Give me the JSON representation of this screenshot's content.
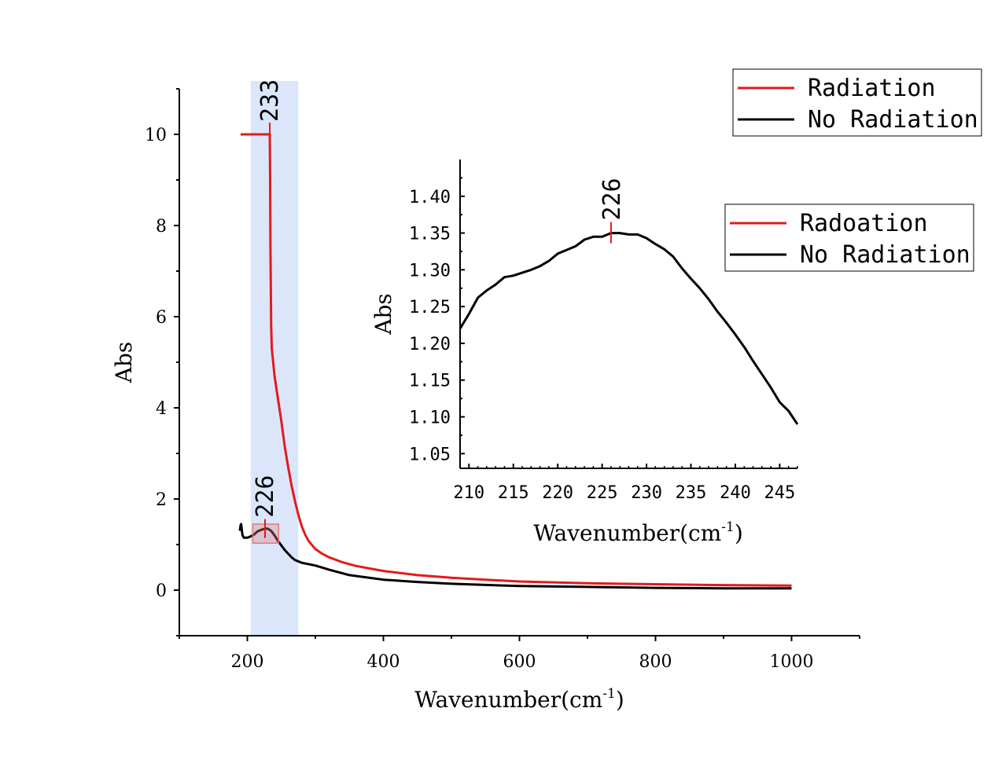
{
  "chart_data": [
    {
      "id": "main",
      "type": "line",
      "xlabel": "Wavenumber(cm",
      "xlabel_sup": "-1",
      "xlabel_close": ")",
      "ylabel": "Abs",
      "xlim": [
        100,
        1100
      ],
      "ylim": [
        -1,
        11
      ],
      "xticks": [
        200,
        400,
        600,
        800,
        1000
      ],
      "yticks": [
        0,
        2,
        4,
        6,
        8,
        10
      ],
      "highlight_band": {
        "x": [
          205,
          275
        ],
        "color": "#dce6fb"
      },
      "zoom_box": {
        "x": [
          208,
          246
        ],
        "y": [
          1.03,
          1.45
        ],
        "color": "#e07a7a"
      },
      "series": [
        {
          "name": "Radiation",
          "color": "#e31a1c",
          "points": [
            [
              190,
              10
            ],
            [
              232.5,
              10
            ],
            [
              233,
              10
            ],
            [
              233.5,
              9
            ],
            [
              234,
              7.5
            ],
            [
              235,
              5.8
            ],
            [
              236,
              5.3
            ],
            [
              240,
              4.7
            ],
            [
              245,
              4.2
            ],
            [
              250,
              3.7
            ],
            [
              255,
              3.15
            ],
            [
              260,
              2.7
            ],
            [
              265,
              2.3
            ],
            [
              270,
              1.95
            ],
            [
              275,
              1.65
            ],
            [
              280,
              1.4
            ],
            [
              285,
              1.22
            ],
            [
              290,
              1.08
            ],
            [
              300,
              0.9
            ],
            [
              310,
              0.8
            ],
            [
              320,
              0.72
            ],
            [
              340,
              0.61
            ],
            [
              360,
              0.53
            ],
            [
              400,
              0.42
            ],
            [
              450,
              0.33
            ],
            [
              500,
              0.27
            ],
            [
              550,
              0.23
            ],
            [
              600,
              0.19
            ],
            [
              650,
              0.17
            ],
            [
              700,
              0.15
            ],
            [
              800,
              0.13
            ],
            [
              900,
              0.11
            ],
            [
              1000,
              0.1
            ]
          ]
        },
        {
          "name": "No Radiation",
          "color": "#000000",
          "points": [
            [
              189,
              1.3
            ],
            [
              190,
              1.42
            ],
            [
              191,
              1.45
            ],
            [
              192,
              1.3
            ],
            [
              193,
              1.2
            ],
            [
              195,
              1.15
            ],
            [
              200,
              1.15
            ],
            [
              205,
              1.18
            ],
            [
              210,
              1.22
            ],
            [
              215,
              1.29
            ],
            [
              220,
              1.32
            ],
            [
              226,
              1.35
            ],
            [
              230,
              1.35
            ],
            [
              235,
              1.3
            ],
            [
              240,
              1.2
            ],
            [
              245,
              1.08
            ],
            [
              250,
              0.98
            ],
            [
              255,
              0.88
            ],
            [
              260,
              0.8
            ],
            [
              265,
              0.72
            ],
            [
              270,
              0.66
            ],
            [
              280,
              0.6
            ],
            [
              300,
              0.54
            ],
            [
              320,
              0.45
            ],
            [
              350,
              0.33
            ],
            [
              400,
              0.23
            ],
            [
              450,
              0.18
            ],
            [
              500,
              0.14
            ],
            [
              600,
              0.09
            ],
            [
              700,
              0.07
            ],
            [
              800,
              0.05
            ],
            [
              900,
              0.04
            ],
            [
              1000,
              0.04
            ]
          ]
        }
      ],
      "annotations": [
        {
          "text": "233",
          "x": 233,
          "y": 10,
          "series": "Radiation"
        },
        {
          "text": "226",
          "x": 226,
          "y": 1.35,
          "series": "No Radiation"
        }
      ],
      "legend": {
        "position": "top-right",
        "entries": [
          {
            "label": "Radiation",
            "color": "#e31a1c"
          },
          {
            "label": "No Radiation",
            "color": "#000000"
          }
        ]
      }
    },
    {
      "id": "inset",
      "type": "line",
      "xlabel": "Wavenumber(cm",
      "xlabel_sup": "-1",
      "xlabel_close": ")",
      "ylabel": "Abs",
      "xlim": [
        209,
        247
      ],
      "ylim": [
        1.03,
        1.45
      ],
      "xticks": [
        210,
        215,
        220,
        225,
        230,
        235,
        240,
        245
      ],
      "xtick_labels": [
        "210",
        "215",
        "220",
        "225",
        "230",
        "235",
        "240",
        "245"
      ],
      "yticks": [
        1.05,
        1.1,
        1.15,
        1.2,
        1.25,
        1.3,
        1.35,
        1.4
      ],
      "ytick_labels": [
        "1.05",
        "1.10",
        "1.15",
        "1.20",
        "1.25",
        "1.30",
        "1.35",
        "1.40"
      ],
      "series": [
        {
          "name": "No Radiation",
          "color": "#000000",
          "points": [
            [
              209,
              1.22
            ],
            [
              210,
              1.24
            ],
            [
              211,
              1.262
            ],
            [
              212,
              1.272
            ],
            [
              213,
              1.28
            ],
            [
              214,
              1.29
            ],
            [
              215,
              1.292
            ],
            [
              216,
              1.296
            ],
            [
              217,
              1.3
            ],
            [
              218,
              1.305
            ],
            [
              219,
              1.312
            ],
            [
              220,
              1.322
            ],
            [
              221,
              1.327
            ],
            [
              222,
              1.332
            ],
            [
              223,
              1.341
            ],
            [
              224,
              1.345
            ],
            [
              225,
              1.345
            ],
            [
              226,
              1.35
            ],
            [
              227,
              1.35
            ],
            [
              228,
              1.348
            ],
            [
              229,
              1.348
            ],
            [
              230,
              1.343
            ],
            [
              231,
              1.335
            ],
            [
              232,
              1.328
            ],
            [
              233,
              1.318
            ],
            [
              234,
              1.302
            ],
            [
              235,
              1.288
            ],
            [
              236,
              1.275
            ],
            [
              237,
              1.26
            ],
            [
              238,
              1.243
            ],
            [
              239,
              1.228
            ],
            [
              240,
              1.212
            ],
            [
              241,
              1.195
            ],
            [
              242,
              1.176
            ],
            [
              243,
              1.158
            ],
            [
              244,
              1.14
            ],
            [
              245,
              1.12
            ],
            [
              246,
              1.108
            ],
            [
              247,
              1.09
            ]
          ]
        }
      ],
      "annotations": [
        {
          "text": "226",
          "x": 226,
          "y": 1.35
        }
      ],
      "legend": {
        "position": "top-right",
        "entries": [
          {
            "label": "Radoation",
            "color": "#e31a1c"
          },
          {
            "label": "No Radiation",
            "color": "#000000"
          }
        ]
      }
    }
  ]
}
